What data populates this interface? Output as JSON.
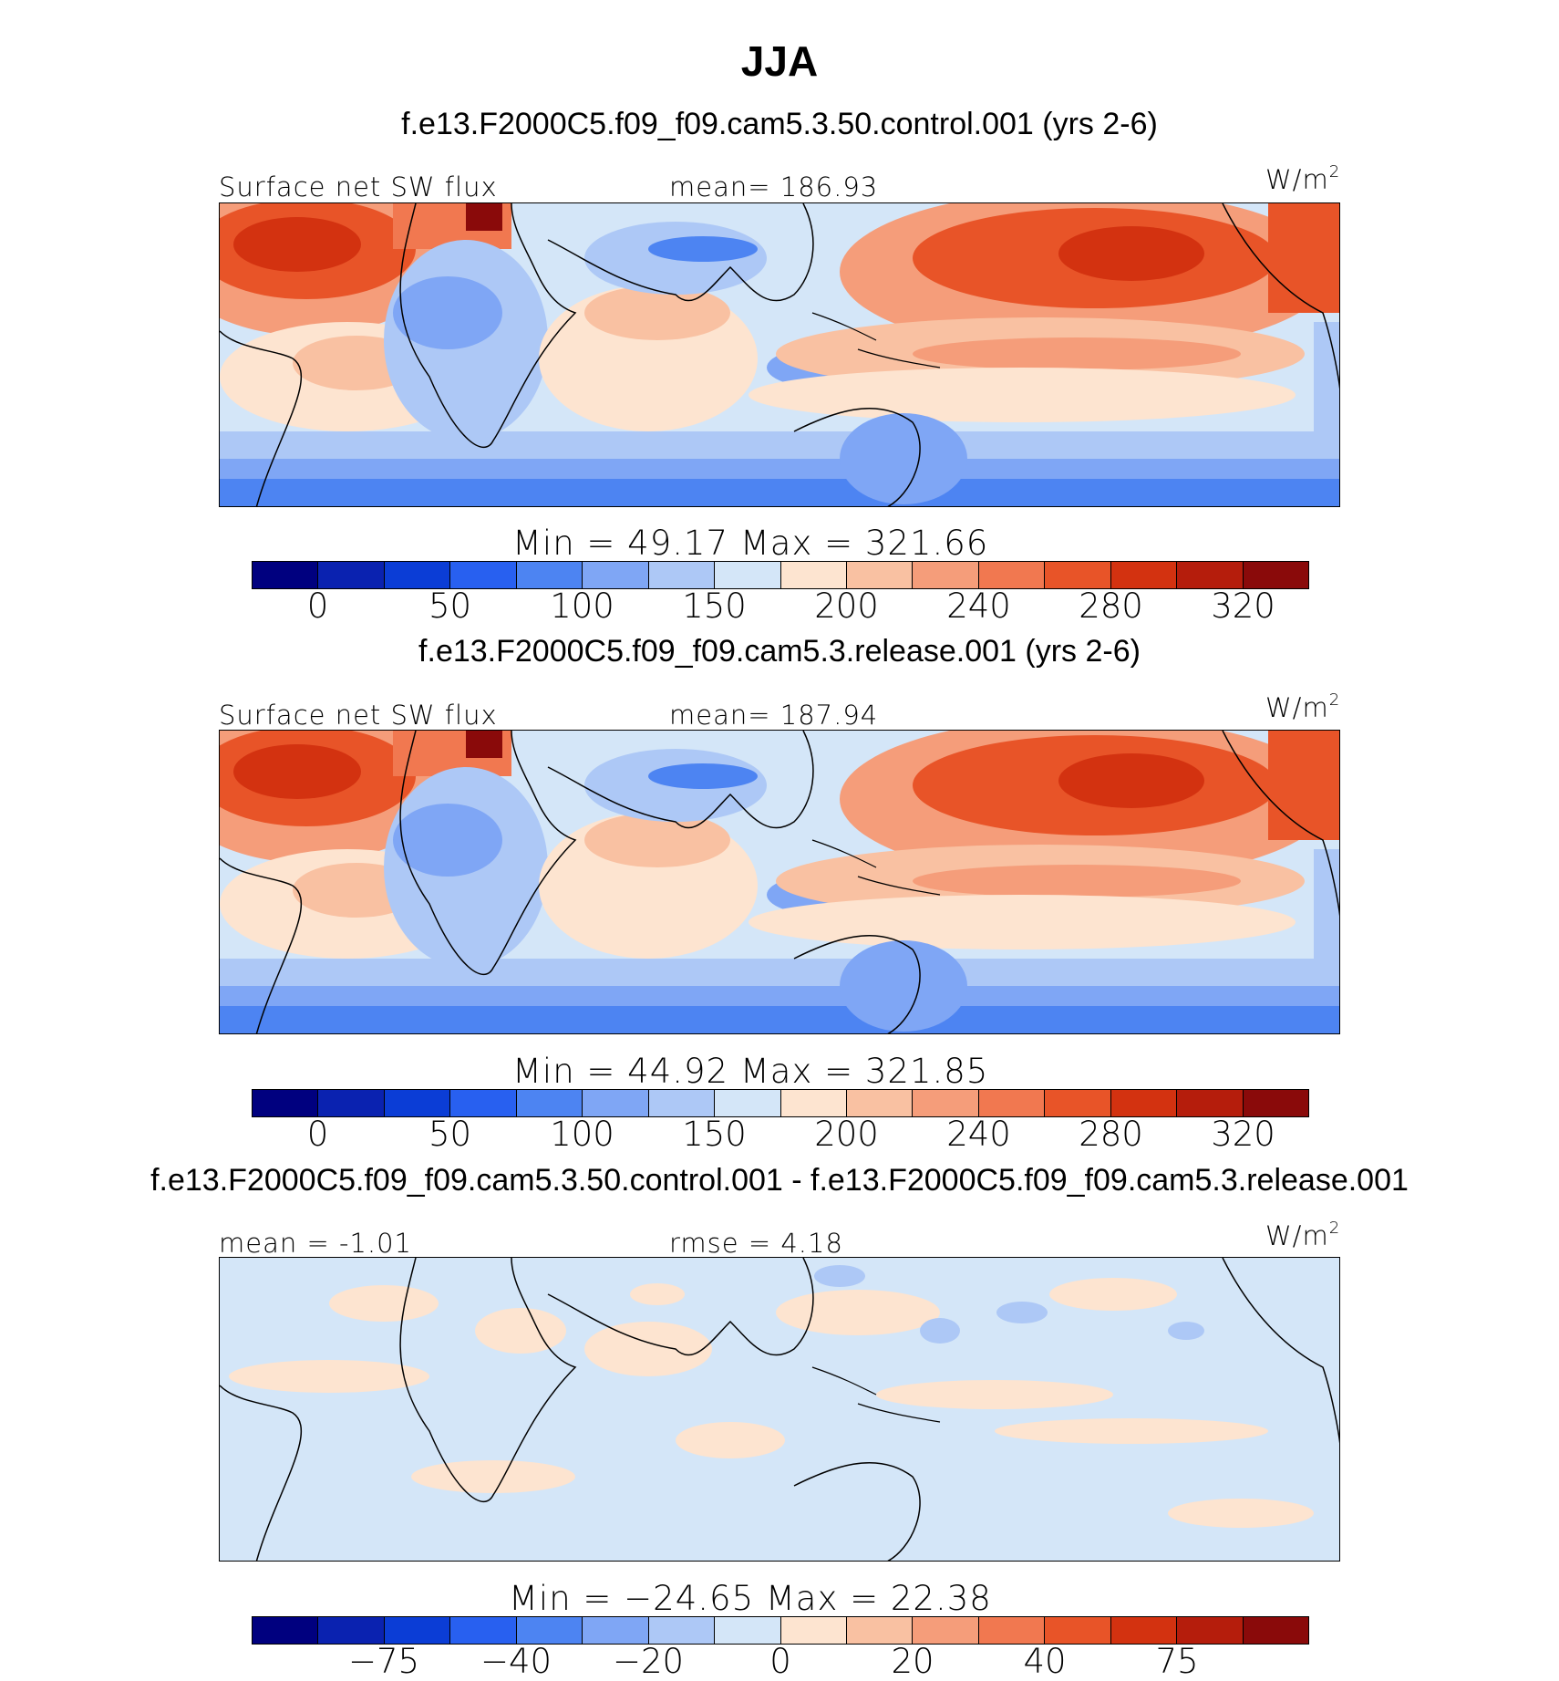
{
  "title": "JJA",
  "panels": [
    {
      "case_title": "f.e13.F2000C5.f09_f09.cam5.3.50.control.001 (yrs 2-6)",
      "left_label": "Surface net SW flux",
      "center_label": "mean= 186.93",
      "units": "W/m",
      "units_sup": "2",
      "min_max": "Min =  49.17 Max = 321.66",
      "colorbar": {
        "colors": [
          "#00007f",
          "#0a22b0",
          "#0b3dd6",
          "#2860f0",
          "#4d84f2",
          "#7fa6f5",
          "#adc8f6",
          "#d4e6f8",
          "#fde4d0",
          "#f9c1a2",
          "#f59d7a",
          "#f17850",
          "#e85428",
          "#d33210",
          "#b51d0c",
          "#8a0a0a"
        ],
        "ticks": [
          "0",
          "50",
          "100",
          "150",
          "200",
          "240",
          "280",
          "320"
        ]
      },
      "kind": "field"
    },
    {
      "case_title": "f.e13.F2000C5.f09_f09.cam5.3.release.001 (yrs 2-6)",
      "left_label": "Surface net SW flux",
      "center_label": "mean= 187.94",
      "units": "W/m",
      "units_sup": "2",
      "min_max": "Min =  44.92 Max = 321.85",
      "colorbar": {
        "colors": [
          "#00007f",
          "#0a22b0",
          "#0b3dd6",
          "#2860f0",
          "#4d84f2",
          "#7fa6f5",
          "#adc8f6",
          "#d4e6f8",
          "#fde4d0",
          "#f9c1a2",
          "#f59d7a",
          "#f17850",
          "#e85428",
          "#d33210",
          "#b51d0c",
          "#8a0a0a"
        ],
        "ticks": [
          "0",
          "50",
          "100",
          "150",
          "200",
          "240",
          "280",
          "320"
        ]
      },
      "kind": "field"
    },
    {
      "case_title": "f.e13.F2000C5.f09_f09.cam5.3.50.control.001 - f.e13.F2000C5.f09_f09.cam5.3.release.001",
      "left_label": "mean =  -1.01",
      "center_label": "rmse =   4.18",
      "units": "W/m",
      "units_sup": "2",
      "min_max": "Min = −24.65 Max =  22.38",
      "colorbar": {
        "colors": [
          "#00007f",
          "#0a22b0",
          "#0b3dd6",
          "#2860f0",
          "#4d84f2",
          "#7fa6f5",
          "#adc8f6",
          "#d4e6f8",
          "#fde4d0",
          "#f9c1a2",
          "#f59d7a",
          "#f17850",
          "#e85428",
          "#d33210",
          "#b51d0c",
          "#8a0a0a"
        ],
        "ticks": [
          "−75",
          "−40",
          "−20",
          "0",
          "20",
          "40",
          "75"
        ]
      },
      "kind": "diff"
    }
  ],
  "chart_data": [
    {
      "type": "heatmap",
      "title": "JJA",
      "subtitle": "f.e13.F2000C5.f09_f09.cam5.3.50.control.001 (yrs 2-6)",
      "variable": "Surface net SW flux",
      "units": "W/m2",
      "mean": 186.93,
      "min": 49.17,
      "max": 321.66,
      "contour_levels": [
        0,
        25,
        50,
        75,
        100,
        125,
        150,
        175,
        200,
        220,
        240,
        260,
        280,
        300,
        320
      ]
    },
    {
      "type": "heatmap",
      "title": "JJA",
      "subtitle": "f.e13.F2000C5.f09_f09.cam5.3.release.001 (yrs 2-6)",
      "variable": "Surface net SW flux",
      "units": "W/m2",
      "mean": 187.94,
      "min": 44.92,
      "max": 321.85,
      "contour_levels": [
        0,
        25,
        50,
        75,
        100,
        125,
        150,
        175,
        200,
        220,
        240,
        260,
        280,
        300,
        320
      ]
    },
    {
      "type": "heatmap",
      "title": "JJA",
      "subtitle": "f.e13.F2000C5.f09_f09.cam5.3.50.control.001 - f.e13.F2000C5.f09_f09.cam5.3.release.001",
      "variable": "Surface net SW flux difference",
      "units": "W/m2",
      "mean": -1.01,
      "rmse": 4.18,
      "min": -24.65,
      "max": 22.38,
      "contour_levels": [
        -100,
        -75,
        -50,
        -40,
        -30,
        -20,
        -10,
        0,
        10,
        20,
        30,
        40,
        50,
        75,
        100
      ]
    }
  ]
}
